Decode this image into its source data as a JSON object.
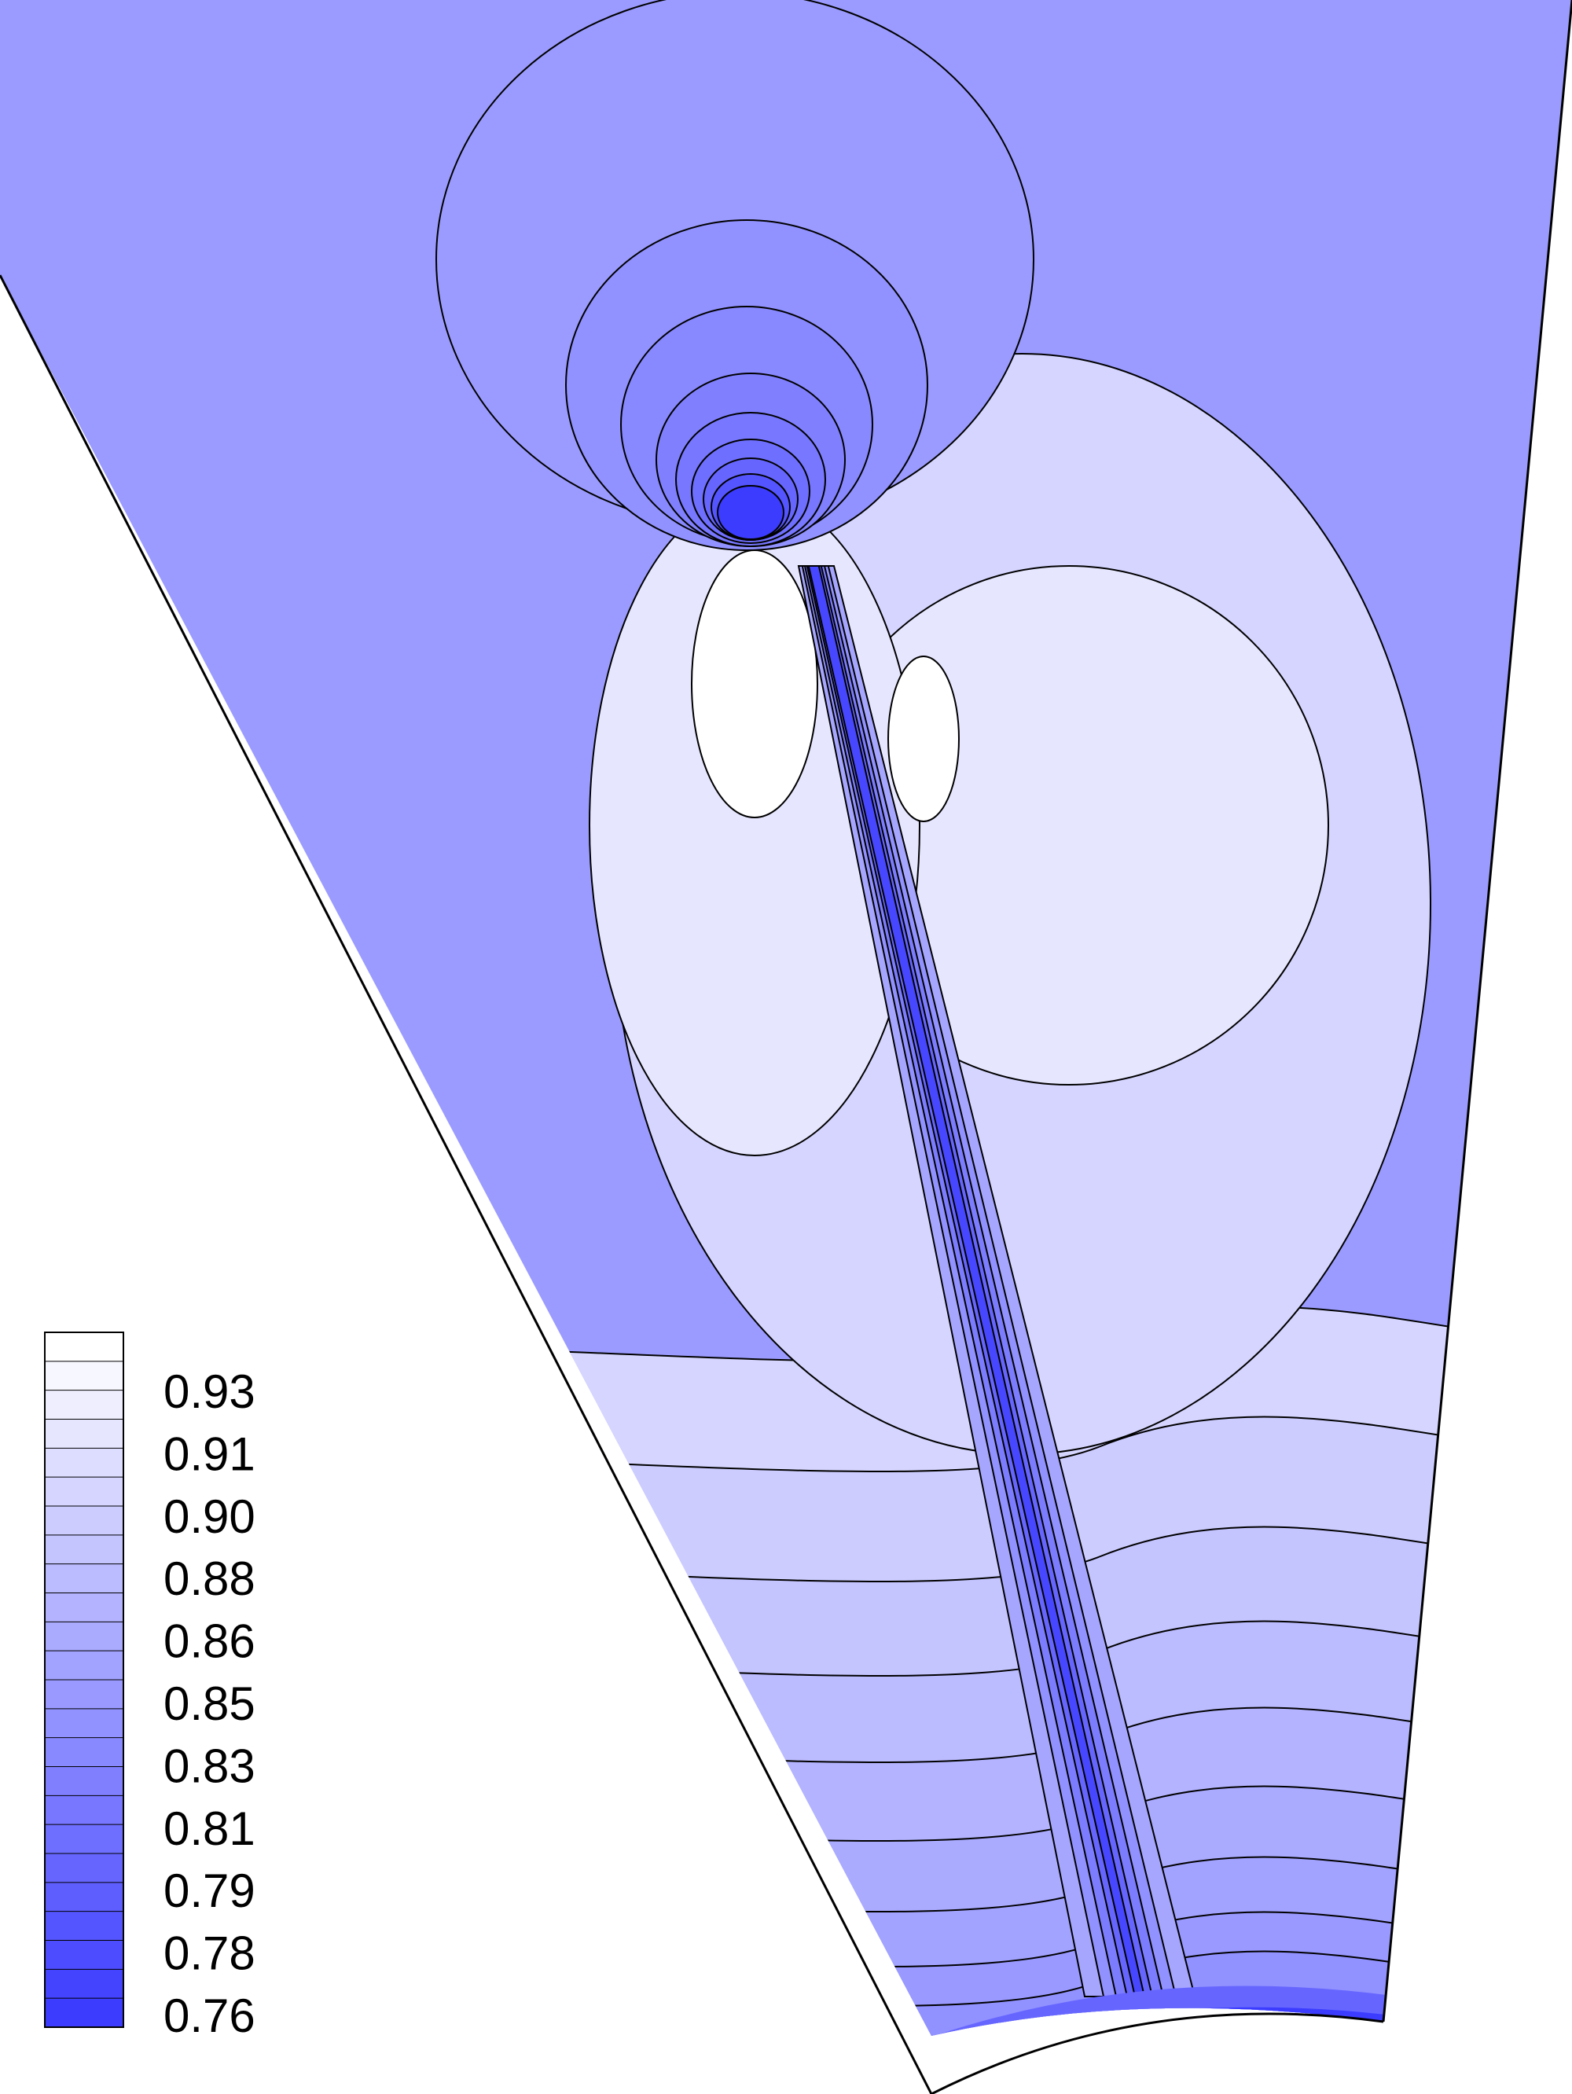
{
  "chart_data": {
    "type": "contour",
    "title": "",
    "legend": {
      "position": "bottom-left",
      "tick_labels": [
        "0.93",
        "0.91",
        "0.90",
        "0.88",
        "0.86",
        "0.85",
        "0.83",
        "0.81",
        "0.79",
        "0.78",
        "0.76"
      ],
      "levels": [
        0.76,
        0.768,
        0.776,
        0.784,
        0.792,
        0.8,
        0.808,
        0.816,
        0.824,
        0.832,
        0.84,
        0.848,
        0.856,
        0.864,
        0.872,
        0.88,
        0.888,
        0.896,
        0.904,
        0.912,
        0.92,
        0.928,
        0.936,
        0.944
      ],
      "color_min": "#3c3cff",
      "color_max": "#ffffff"
    },
    "value_range": [
      0.76,
      0.944
    ],
    "color_scale": "blue-to-white",
    "features": {
      "upper_low_region_min": 0.76,
      "near_white_region_max": 0.944,
      "bottom_edge_min": 0.76
    }
  }
}
